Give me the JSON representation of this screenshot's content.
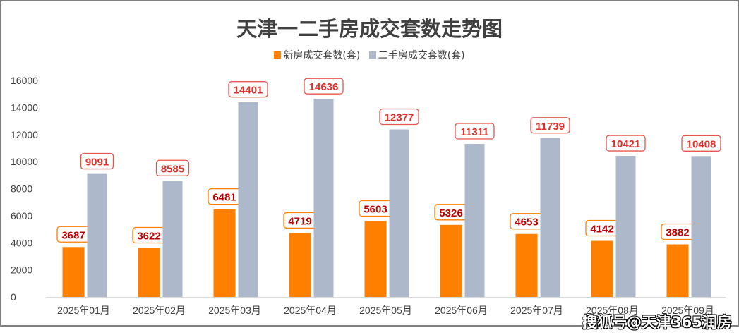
{
  "chart_data": {
    "type": "bar",
    "title": "天津一二手房成交套数走势图",
    "categories": [
      "2025年01月",
      "2025年02月",
      "2025年03月",
      "2025年04月",
      "2025年05月",
      "2025年06月",
      "2025年07月",
      "2025年08月",
      "2025年09月"
    ],
    "series": [
      {
        "name": "新房成交套数(套)",
        "color": "#ff7f00",
        "values": [
          3687,
          3622,
          6481,
          4719,
          5603,
          5326,
          4653,
          4142,
          3882
        ]
      },
      {
        "name": "二手房成交套数(套)",
        "color": "#adb9ca",
        "values": [
          9091,
          8585,
          14401,
          14636,
          12377,
          11311,
          11739,
          10421,
          10408
        ]
      }
    ],
    "xlabel": "",
    "ylabel": "",
    "ylim": [
      0,
      16000
    ],
    "yticks": [
      0,
      2000,
      4000,
      6000,
      8000,
      10000,
      12000,
      14000,
      16000
    ],
    "grid": false,
    "legend": "top-center",
    "label_colors": {
      "new": "#c00000",
      "second": "#e0302a"
    }
  },
  "watermark": "搜狐号@天津365润房"
}
